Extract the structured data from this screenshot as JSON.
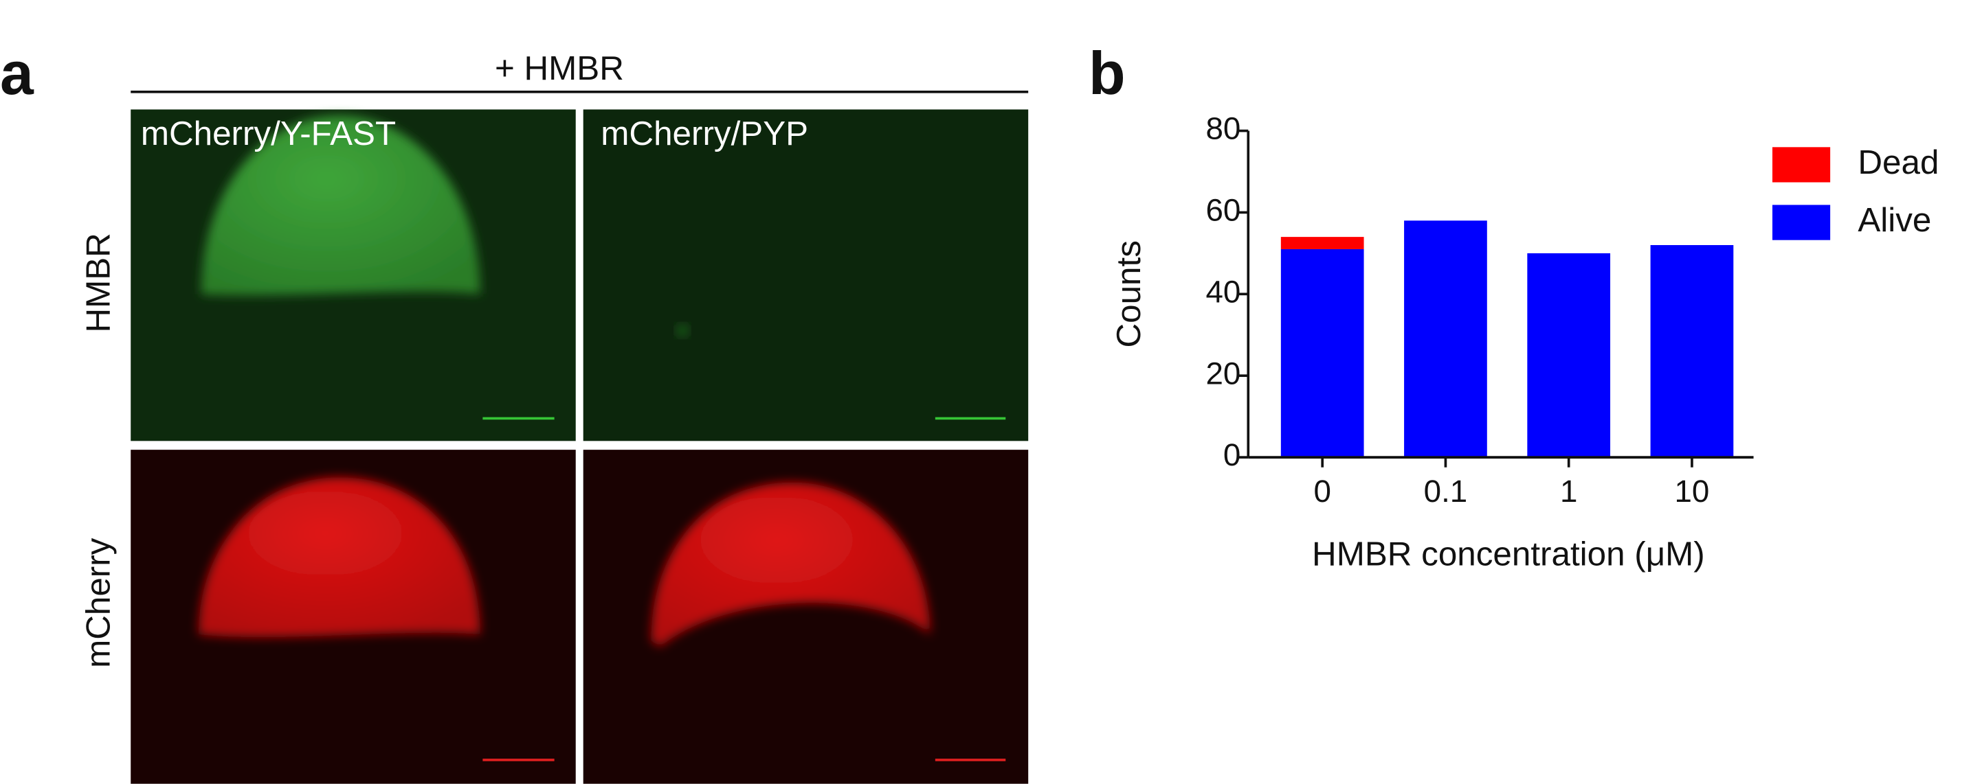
{
  "panel_labels": [
    "a",
    "b"
  ],
  "panel_a": {
    "header": "+ HMBR",
    "columns": [
      "mCherry/Y-FAST",
      "mCherry/PYP"
    ],
    "rows": [
      "HMBR",
      "mCherry"
    ]
  },
  "chart_data": {
    "type": "bar",
    "stacked": true,
    "xlabel": "HMBR concentration (μM)",
    "ylabel": "Counts",
    "categories": [
      "0",
      "0.1",
      "1",
      "10"
    ],
    "series": [
      {
        "name": "Alive",
        "color": "#0000ff",
        "values": [
          51,
          58,
          50,
          52
        ]
      },
      {
        "name": "Dead",
        "color": "#ff0000",
        "values": [
          3,
          0,
          0,
          0
        ]
      }
    ],
    "ylim": [
      0,
      80
    ],
    "yticks": [
      0,
      20,
      40,
      60,
      80
    ],
    "legend": "right"
  }
}
